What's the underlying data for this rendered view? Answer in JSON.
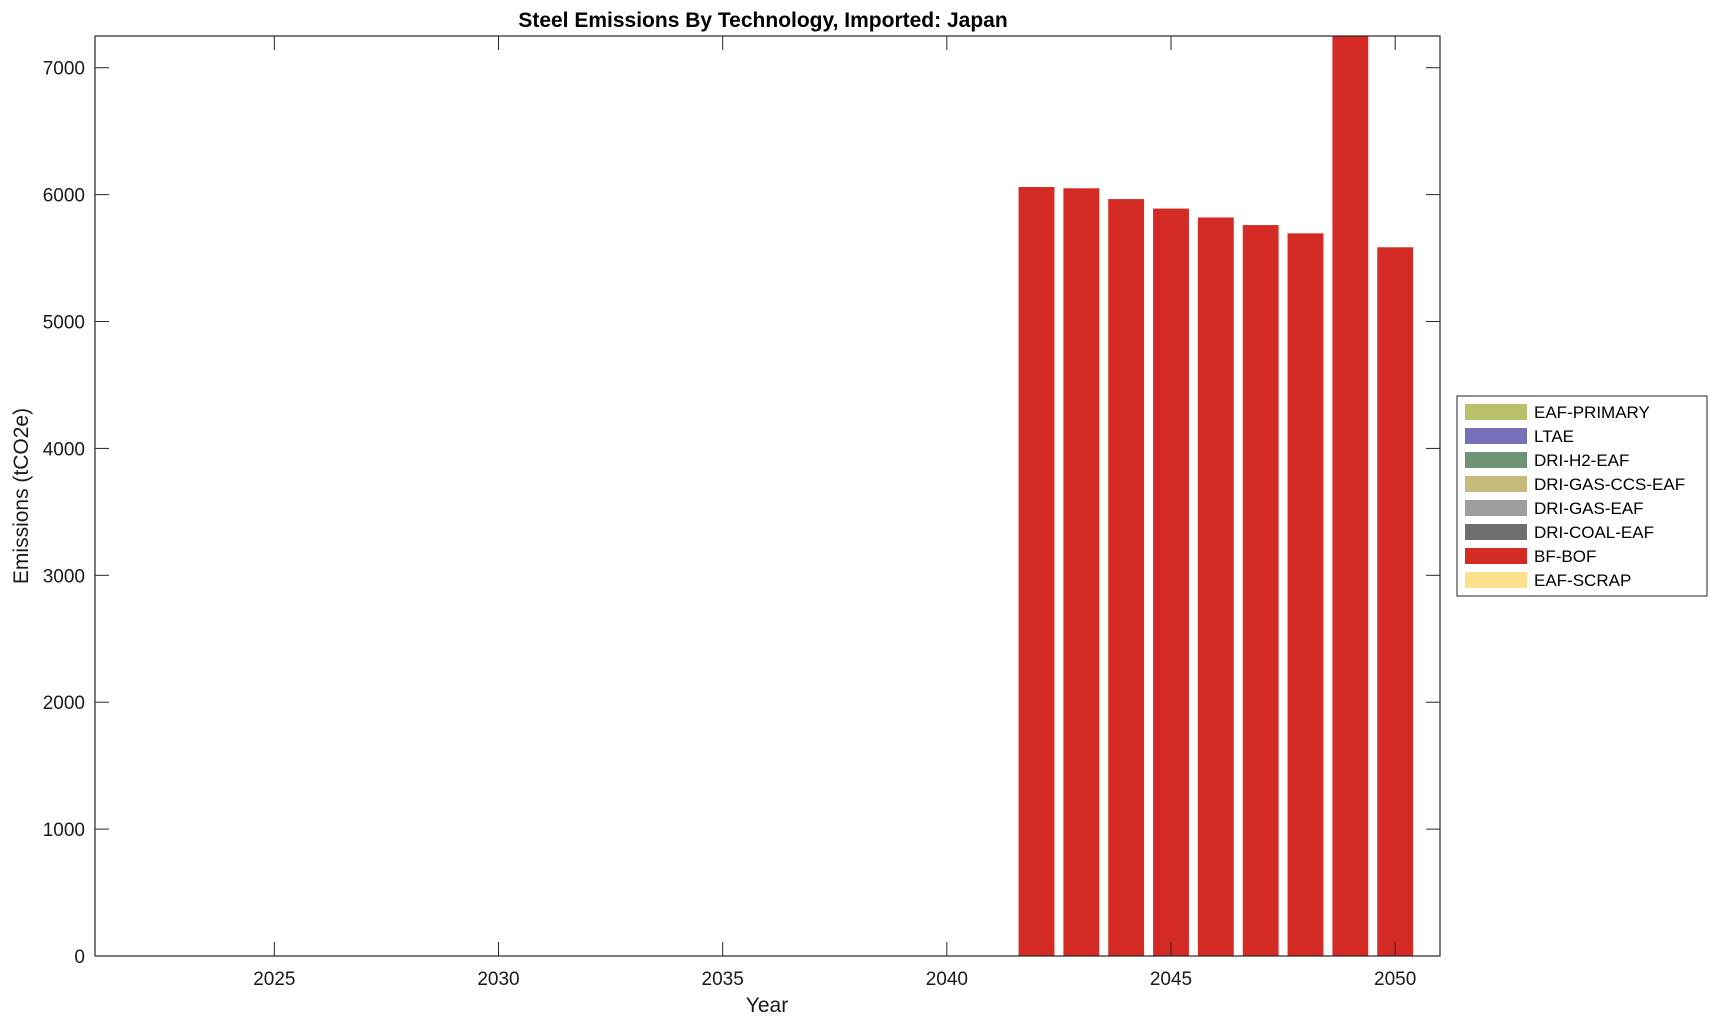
{
  "chart_data": {
    "type": "bar",
    "stacked": true,
    "title": "Steel Emissions By Technology, Imported: Japan",
    "xlabel": "Year",
    "ylabel": "Emissions (tCO2e)",
    "xlim": [
      2021,
      2051
    ],
    "ylim": [
      0,
      7250
    ],
    "x_ticks": [
      2025,
      2030,
      2035,
      2040,
      2045,
      2050
    ],
    "y_ticks": [
      0,
      1000,
      2000,
      3000,
      4000,
      5000,
      6000,
      7000
    ],
    "grid": false,
    "legend_position": "east-outside",
    "x": [
      2042,
      2043,
      2044,
      2045,
      2046,
      2047,
      2048,
      2049,
      2050
    ],
    "series": [
      {
        "name": "EAF-PRIMARY",
        "color": "#b9c06a",
        "values": [
          0,
          0,
          0,
          0,
          0,
          0,
          0,
          0,
          0
        ]
      },
      {
        "name": "LTAE",
        "color": "#7570b8",
        "values": [
          0,
          0,
          0,
          0,
          0,
          0,
          0,
          0,
          0
        ]
      },
      {
        "name": "DRI-H2-EAF",
        "color": "#6f9475",
        "values": [
          0,
          0,
          0,
          0,
          0,
          0,
          0,
          0,
          0
        ]
      },
      {
        "name": "DRI-GAS-CCS-EAF",
        "color": "#c6bb7d",
        "values": [
          0,
          0,
          0,
          0,
          0,
          0,
          0,
          0,
          0
        ]
      },
      {
        "name": "DRI-GAS-EAF",
        "color": "#9e9e9e",
        "values": [
          0,
          0,
          0,
          0,
          0,
          0,
          0,
          0,
          0
        ]
      },
      {
        "name": "DRI-COAL-EAF",
        "color": "#6e6e6e",
        "values": [
          0,
          0,
          0,
          0,
          0,
          0,
          0,
          0,
          0
        ]
      },
      {
        "name": "BF-BOF",
        "color": "#d42b25",
        "values": [
          6060,
          6050,
          5965,
          5890,
          5820,
          5760,
          5695,
          7250,
          5585
        ]
      },
      {
        "name": "EAF-SCRAP",
        "color": "#fde08c",
        "values": [
          0,
          0,
          0,
          0,
          0,
          0,
          0,
          0,
          0
        ]
      }
    ]
  }
}
